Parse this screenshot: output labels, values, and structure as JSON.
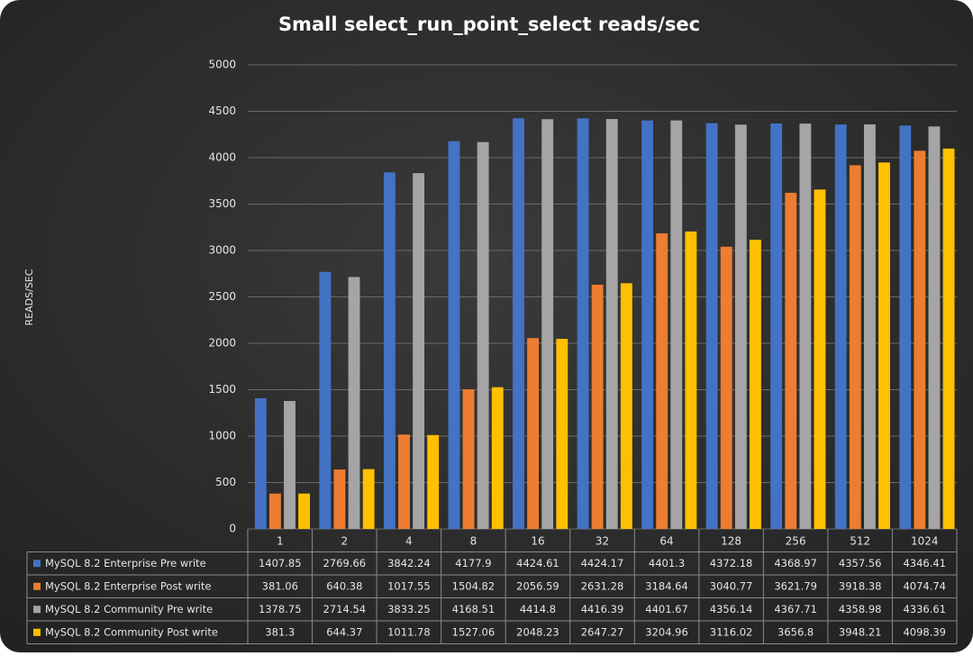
{
  "chart_data": {
    "type": "bar",
    "title": "Small select_run_point_select   reads/sec",
    "y_label": "READS/SEC",
    "categories": [
      "1",
      "2",
      "4",
      "8",
      "16",
      "32",
      "64",
      "128",
      "256",
      "512",
      "1024"
    ],
    "series": [
      {
        "name": "MySQL 8.2 Enterprise Pre write",
        "color": "#4472c4",
        "values": [
          1407.85,
          2769.66,
          3842.24,
          4177.9,
          4424.61,
          4424.17,
          4401.3,
          4372.18,
          4368.97,
          4357.56,
          4346.41
        ]
      },
      {
        "name": "MySQL 8.2 Enterprise Post write",
        "color": "#ed7d31",
        "values": [
          381.06,
          640.38,
          1017.55,
          1504.82,
          2056.59,
          2631.28,
          3184.64,
          3040.77,
          3621.79,
          3918.38,
          4074.74
        ]
      },
      {
        "name": "MySQL 8.2 Community Pre write",
        "color": "#a5a5a5",
        "values": [
          1378.75,
          2714.54,
          3833.25,
          4168.51,
          4414.8,
          4416.39,
          4401.67,
          4356.14,
          4367.71,
          4358.98,
          4336.61
        ]
      },
      {
        "name": "MySQL 8.2 Community Post write",
        "color": "#ffc000",
        "values": [
          381.3,
          644.37,
          1011.78,
          1527.06,
          2048.23,
          2647.27,
          3204.96,
          3116.02,
          3656.8,
          3948.21,
          4098.39
        ]
      }
    ],
    "ylim": [
      0,
      5000
    ],
    "yticks": [
      0,
      500,
      1000,
      1500,
      2000,
      2500,
      3000,
      3500,
      4000,
      4500,
      5000
    ],
    "grid": true
  }
}
